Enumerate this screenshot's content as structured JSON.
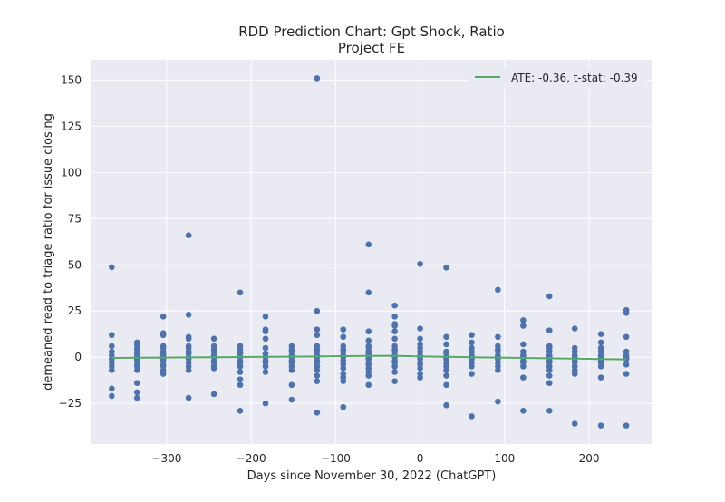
{
  "chart_data": {
    "type": "scatter",
    "title": "RDD Prediction Chart: Gpt Shock, Ratio",
    "subtitle": "Project FE",
    "xlabel": "Days since November 30, 2022 (ChatGPT)",
    "ylabel": "demeaned read to triage ratio for issue closing",
    "xlim": [
      -390,
      275
    ],
    "ylim": [
      -47,
      161
    ],
    "xticks": [
      -300,
      -200,
      -100,
      0,
      100,
      200
    ],
    "xtick_labels": [
      "−300",
      "−200",
      "−100",
      "0",
      "100",
      "200"
    ],
    "yticks": [
      -25,
      0,
      25,
      50,
      75,
      100,
      125,
      150
    ],
    "ytick_labels": [
      "−25",
      "0",
      "25",
      "50",
      "75",
      "100",
      "125",
      "150"
    ],
    "grid": true,
    "background": "#eaeaf2",
    "legend_position": "top-right",
    "series": [
      {
        "name": "",
        "kind": "scatter",
        "color": "#4c72b0",
        "points": [
          [
            -365,
            48.7
          ],
          [
            -365,
            12
          ],
          [
            -365,
            6
          ],
          [
            -365,
            3
          ],
          [
            -365,
            1
          ],
          [
            -365,
            -1
          ],
          [
            -365,
            -3
          ],
          [
            -365,
            -5
          ],
          [
            -365,
            -7
          ],
          [
            -365,
            -17
          ],
          [
            -365,
            -21
          ],
          [
            -335,
            8
          ],
          [
            -335,
            7
          ],
          [
            -335,
            5
          ],
          [
            -335,
            4
          ],
          [
            -335,
            2
          ],
          [
            -335,
            1
          ],
          [
            -335,
            0
          ],
          [
            -335,
            -1
          ],
          [
            -335,
            -2
          ],
          [
            -335,
            -4
          ],
          [
            -335,
            -5
          ],
          [
            -335,
            -7
          ],
          [
            -335,
            -14
          ],
          [
            -335,
            -19
          ],
          [
            -335,
            -22
          ],
          [
            -304,
            22
          ],
          [
            -304,
            13
          ],
          [
            -304,
            12
          ],
          [
            -304,
            6
          ],
          [
            -304,
            5
          ],
          [
            -304,
            3
          ],
          [
            -304,
            2
          ],
          [
            -304,
            1
          ],
          [
            -304,
            0
          ],
          [
            -304,
            -1
          ],
          [
            -304,
            -2
          ],
          [
            -304,
            -4
          ],
          [
            -304,
            -5
          ],
          [
            -304,
            -7
          ],
          [
            -304,
            -9
          ],
          [
            -274,
            66
          ],
          [
            -274,
            23
          ],
          [
            -274,
            11
          ],
          [
            -274,
            10
          ],
          [
            -274,
            6
          ],
          [
            -274,
            5
          ],
          [
            -274,
            3
          ],
          [
            -274,
            2
          ],
          [
            -274,
            0
          ],
          [
            -274,
            -1
          ],
          [
            -274,
            -3
          ],
          [
            -274,
            -5
          ],
          [
            -274,
            -7
          ],
          [
            -274,
            -22
          ],
          [
            -244,
            10
          ],
          [
            -244,
            6
          ],
          [
            -244,
            4
          ],
          [
            -244,
            3
          ],
          [
            -244,
            1
          ],
          [
            -244,
            0
          ],
          [
            -244,
            -2
          ],
          [
            -244,
            -3
          ],
          [
            -244,
            -5
          ],
          [
            -244,
            -6
          ],
          [
            -244,
            -20
          ],
          [
            -213,
            35
          ],
          [
            -213,
            6
          ],
          [
            -213,
            4
          ],
          [
            -213,
            2
          ],
          [
            -213,
            0
          ],
          [
            -213,
            -2
          ],
          [
            -213,
            -3
          ],
          [
            -213,
            -5
          ],
          [
            -213,
            -8
          ],
          [
            -213,
            -12
          ],
          [
            -213,
            -15
          ],
          [
            -213,
            -29
          ],
          [
            -183,
            22
          ],
          [
            -183,
            15
          ],
          [
            -183,
            14
          ],
          [
            -183,
            10
          ],
          [
            -183,
            5
          ],
          [
            -183,
            2
          ],
          [
            -183,
            0
          ],
          [
            -183,
            -2
          ],
          [
            -183,
            -3
          ],
          [
            -183,
            -5
          ],
          [
            -183,
            -8
          ],
          [
            -183,
            -25
          ],
          [
            -152,
            6
          ],
          [
            -152,
            4
          ],
          [
            -152,
            3
          ],
          [
            -152,
            1
          ],
          [
            -152,
            0
          ],
          [
            -152,
            -2
          ],
          [
            -152,
            -3
          ],
          [
            -152,
            -5
          ],
          [
            -152,
            -7
          ],
          [
            -152,
            -15
          ],
          [
            -152,
            -23
          ],
          [
            -122,
            151
          ],
          [
            -122,
            25
          ],
          [
            -122,
            15
          ],
          [
            -122,
            12
          ],
          [
            -122,
            6
          ],
          [
            -122,
            4
          ],
          [
            -122,
            3
          ],
          [
            -122,
            1
          ],
          [
            -122,
            0
          ],
          [
            -122,
            -2
          ],
          [
            -122,
            -3
          ],
          [
            -122,
            -5
          ],
          [
            -122,
            -7
          ],
          [
            -122,
            -10
          ],
          [
            -122,
            -13
          ],
          [
            -122,
            -30
          ],
          [
            -91,
            15
          ],
          [
            -91,
            11
          ],
          [
            -91,
            6
          ],
          [
            -91,
            4
          ],
          [
            -91,
            3
          ],
          [
            -91,
            1
          ],
          [
            -91,
            0
          ],
          [
            -91,
            -2
          ],
          [
            -91,
            -4
          ],
          [
            -91,
            -6
          ],
          [
            -91,
            -9
          ],
          [
            -91,
            -11
          ],
          [
            -91,
            -13
          ],
          [
            -91,
            -27
          ],
          [
            -61,
            61
          ],
          [
            -61,
            35
          ],
          [
            -61,
            14
          ],
          [
            -61,
            9
          ],
          [
            -61,
            6
          ],
          [
            -61,
            5
          ],
          [
            -61,
            3
          ],
          [
            -61,
            2
          ],
          [
            -61,
            0
          ],
          [
            -61,
            -1
          ],
          [
            -61,
            -3
          ],
          [
            -61,
            -4
          ],
          [
            -61,
            -6
          ],
          [
            -61,
            -8
          ],
          [
            -61,
            -10
          ],
          [
            -61,
            -15
          ],
          [
            -30,
            28
          ],
          [
            -30,
            22
          ],
          [
            -30,
            18
          ],
          [
            -30,
            17
          ],
          [
            -30,
            14
          ],
          [
            -30,
            10
          ],
          [
            -30,
            6
          ],
          [
            -30,
            4
          ],
          [
            -30,
            3
          ],
          [
            -30,
            1
          ],
          [
            -30,
            0
          ],
          [
            -30,
            -2
          ],
          [
            -30,
            -3
          ],
          [
            -30,
            -5
          ],
          [
            -30,
            -8
          ],
          [
            -30,
            -13
          ],
          [
            0,
            50.5
          ],
          [
            0,
            15.5
          ],
          [
            0,
            10
          ],
          [
            0,
            7
          ],
          [
            0,
            5
          ],
          [
            0,
            3
          ],
          [
            0,
            1
          ],
          [
            0,
            0
          ],
          [
            0,
            -1
          ],
          [
            0,
            -3
          ],
          [
            0,
            -4
          ],
          [
            0,
            -6
          ],
          [
            0,
            -9
          ],
          [
            0,
            -11
          ],
          [
            31,
            48.5
          ],
          [
            31,
            11
          ],
          [
            31,
            7
          ],
          [
            31,
            3
          ],
          [
            31,
            2
          ],
          [
            31,
            0
          ],
          [
            31,
            -1
          ],
          [
            31,
            -3
          ],
          [
            31,
            -5
          ],
          [
            31,
            -7
          ],
          [
            31,
            -10
          ],
          [
            31,
            -15
          ],
          [
            31,
            -26
          ],
          [
            61,
            12
          ],
          [
            61,
            8
          ],
          [
            61,
            5
          ],
          [
            61,
            3
          ],
          [
            61,
            1
          ],
          [
            61,
            0
          ],
          [
            61,
            -1
          ],
          [
            61,
            -3
          ],
          [
            61,
            -5
          ],
          [
            61,
            -9
          ],
          [
            61,
            -32
          ],
          [
            92,
            36.5
          ],
          [
            92,
            11
          ],
          [
            92,
            6
          ],
          [
            92,
            4
          ],
          [
            92,
            3
          ],
          [
            92,
            1
          ],
          [
            92,
            0
          ],
          [
            92,
            -1
          ],
          [
            92,
            -3
          ],
          [
            92,
            -5
          ],
          [
            92,
            -7
          ],
          [
            92,
            -24
          ],
          [
            122,
            20
          ],
          [
            122,
            17
          ],
          [
            122,
            7
          ],
          [
            122,
            3
          ],
          [
            122,
            1
          ],
          [
            122,
            0
          ],
          [
            122,
            -2
          ],
          [
            122,
            -3
          ],
          [
            122,
            -5
          ],
          [
            122,
            -11
          ],
          [
            122,
            -29
          ],
          [
            153,
            33
          ],
          [
            153,
            14.5
          ],
          [
            153,
            6
          ],
          [
            153,
            5
          ],
          [
            153,
            3
          ],
          [
            153,
            1
          ],
          [
            153,
            0
          ],
          [
            153,
            -2
          ],
          [
            153,
            -3
          ],
          [
            153,
            -5
          ],
          [
            153,
            -7
          ],
          [
            153,
            -10
          ],
          [
            153,
            -14
          ],
          [
            153,
            -29
          ],
          [
            183,
            15.5
          ],
          [
            183,
            5
          ],
          [
            183,
            3
          ],
          [
            183,
            1
          ],
          [
            183,
            0
          ],
          [
            183,
            -2
          ],
          [
            183,
            -3
          ],
          [
            183,
            -5
          ],
          [
            183,
            -7
          ],
          [
            183,
            -9
          ],
          [
            183,
            -36
          ],
          [
            214,
            12.5
          ],
          [
            214,
            8
          ],
          [
            214,
            5
          ],
          [
            214,
            3
          ],
          [
            214,
            1
          ],
          [
            214,
            0
          ],
          [
            214,
            -2
          ],
          [
            214,
            -3
          ],
          [
            214,
            -5
          ],
          [
            214,
            -11
          ],
          [
            214,
            -37
          ],
          [
            244,
            25.5
          ],
          [
            244,
            24
          ],
          [
            244,
            11
          ],
          [
            244,
            3
          ],
          [
            244,
            1
          ],
          [
            244,
            0
          ],
          [
            244,
            -1
          ],
          [
            244,
            -4
          ],
          [
            244,
            -9
          ],
          [
            244,
            -37
          ]
        ]
      },
      {
        "name": "ATE: -0.36, t-stat: -0.39",
        "kind": "line",
        "color": "#55a868",
        "x": [
          -365,
          -335,
          -304,
          -274,
          -244,
          -213,
          -183,
          -152,
          -122,
          -91,
          -61,
          -30,
          0,
          31,
          61,
          92,
          122,
          153,
          183,
          214,
          244
        ],
        "y": [
          -0.4,
          -0.3,
          -0.2,
          -0.1,
          0.0,
          0.1,
          0.2,
          0.3,
          0.4,
          0.6,
          0.7,
          0.8,
          0.4,
          0.2,
          0.0,
          -0.2,
          -0.4,
          -0.6,
          -0.8,
          -1.0,
          -1.2
        ]
      }
    ]
  }
}
